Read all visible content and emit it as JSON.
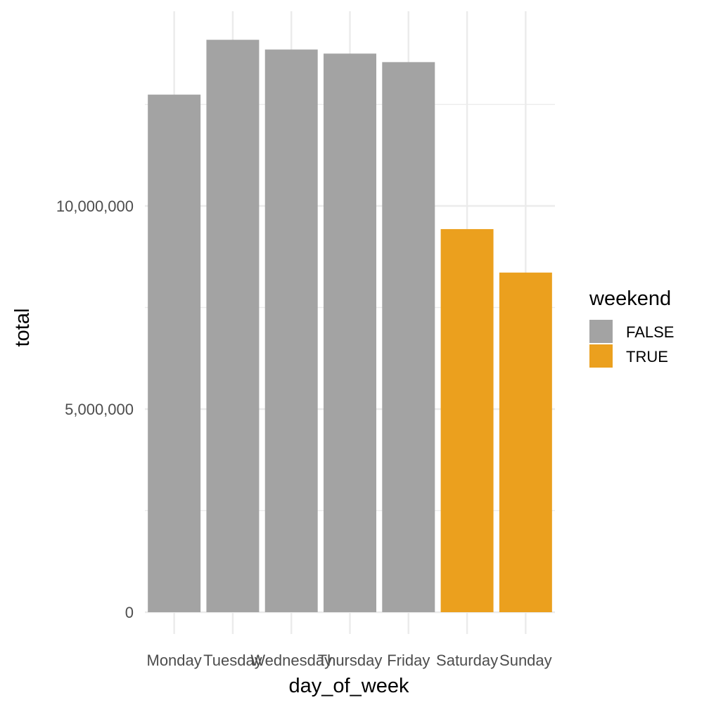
{
  "chart_data": {
    "type": "bar",
    "categories": [
      "Monday",
      "Tuesday",
      "Wednesday",
      "Thursday",
      "Friday",
      "Saturday",
      "Sunday"
    ],
    "values": [
      12740000,
      14090000,
      13850000,
      13750000,
      13540000,
      9430000,
      8360000
    ],
    "groups": [
      "FALSE",
      "FALSE",
      "FALSE",
      "FALSE",
      "FALSE",
      "TRUE",
      "TRUE"
    ],
    "xlabel": "day_of_week",
    "ylabel": "total",
    "ylim": [
      0,
      14800000
    ],
    "yticks": [
      0,
      5000000,
      10000000
    ],
    "ytick_labels": [
      "0",
      "5,000,000",
      "10,000,000"
    ],
    "grid": true,
    "legend": {
      "title": "weekend",
      "position": "right",
      "entries": [
        {
          "label": "FALSE",
          "color": "#a3a3a3"
        },
        {
          "label": "TRUE",
          "color": "#eba01e"
        }
      ]
    },
    "colors": {
      "FALSE": "#a3a3a3",
      "TRUE": "#eba01e"
    }
  }
}
